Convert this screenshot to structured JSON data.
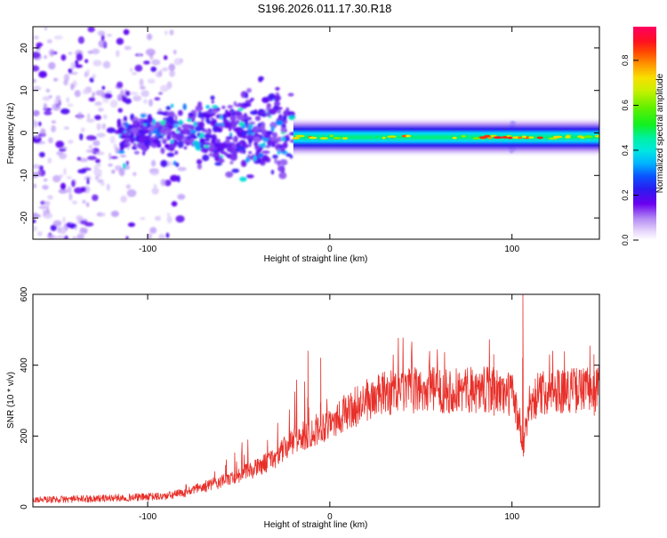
{
  "title": "S196.2026.011.17.30.R18",
  "colors": {
    "snr_line": "#e8302a",
    "axis": "#000000",
    "background": "#ffffff"
  },
  "chart_data": [
    {
      "type": "heatmap",
      "title": "S196.2026.011.17.30.R18",
      "xlabel": "Height of straight line (km)",
      "ylabel": "Frequency (Hz)",
      "xlim": [
        -163,
        148
      ],
      "ylim": [
        -25,
        25
      ],
      "x_ticks": [
        -100,
        0,
        100
      ],
      "x_tick_labels": [
        "-100",
        "0",
        "100"
      ],
      "y_ticks": [
        -20,
        -10,
        0,
        10,
        20
      ],
      "y_tick_labels": [
        "-20",
        "-10",
        "0",
        "10",
        "20"
      ],
      "colorbar": {
        "label": "Normalized spectral amplitude",
        "range": [
          0,
          0.95
        ],
        "ticks": [
          0,
          0.2,
          0.4,
          0.6,
          0.8
        ],
        "tick_labels": [
          "0.0",
          "0.2",
          "0.4",
          "0.6",
          "0.8"
        ]
      },
      "features": [
        {
          "name": "diffuse noise",
          "x_range": [
            -163,
            -80
          ],
          "freq_range": [
            -25,
            25
          ],
          "amplitude": 0.1
        },
        {
          "name": "fan-shaped onset",
          "x_range": [
            -115,
            -20
          ],
          "freq_range": [
            -10,
            10
          ],
          "amplitude": 0.25
        },
        {
          "name": "narrow carrier band",
          "x_range": [
            -20,
            148
          ],
          "center_freq": -1,
          "half_width_hz": 2,
          "amplitude": 0.5
        },
        {
          "name": "disturbance near 100 km",
          "x": 100,
          "freq_range": [
            -5,
            3
          ],
          "amplitude": 0.3
        }
      ]
    },
    {
      "type": "line",
      "xlabel": "Height of straight line (km)",
      "ylabel": "SNR (10 * v/v)",
      "xlim": [
        -163,
        148
      ],
      "ylim": [
        0,
        600
      ],
      "x_ticks": [
        -100,
        0,
        100
      ],
      "x_tick_labels": [
        "-100",
        "0",
        "100"
      ],
      "y_ticks": [
        0,
        200,
        400,
        600
      ],
      "y_tick_labels": [
        "0",
        "200",
        "400",
        "600"
      ],
      "series": [
        {
          "name": "SNR",
          "color": "#e8302a",
          "x": [
            -163,
            -140,
            -120,
            -100,
            -90,
            -80,
            -70,
            -60,
            -50,
            -40,
            -30,
            -20,
            -10,
            0,
            10,
            20,
            30,
            40,
            50,
            60,
            70,
            80,
            90,
            95,
            100,
            104,
            106,
            110,
            120,
            130,
            140,
            148
          ],
          "y": [
            20,
            22,
            25,
            28,
            30,
            40,
            55,
            70,
            90,
            110,
            140,
            185,
            210,
            240,
            270,
            300,
            320,
            325,
            330,
            330,
            328,
            330,
            330,
            320,
            320,
            240,
            160,
            300,
            330,
            330,
            330,
            335
          ],
          "spikes": [
            {
              "x": -12,
              "y": 440
            },
            {
              "x": -5,
              "y": 420
            },
            {
              "x": 106,
              "y": 600
            },
            {
              "x": 90,
              "y": 430
            },
            {
              "x": 145,
              "y": 430
            }
          ]
        }
      ]
    }
  ]
}
